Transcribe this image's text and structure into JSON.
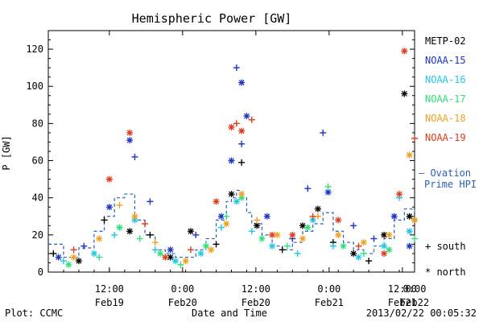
{
  "footer": {
    "left": "Plot: CCMC",
    "center": "Date and Time",
    "right": "2013/02/22 00:05:32"
  },
  "colors": {
    "METP-02": "#000000",
    "NOAA-15": "#1a33c8",
    "NOAA-16": "#1ec8e6",
    "NOAA-17": "#2ee07a",
    "NOAA-18": "#f0a020",
    "NOAA-19": "#e03a1a",
    "Ovation": "#2a5fbf"
  },
  "chart_data": {
    "type": "scatter",
    "title": "Hemispheric Power [GW]",
    "xlabel": "Date and Time",
    "ylabel": "P [GW]",
    "ylim": [
      0,
      130
    ],
    "xlim_hours": [
      0,
      60
    ],
    "yticks": [
      0,
      20,
      40,
      60,
      80,
      100,
      120
    ],
    "xticks": [
      {
        "hour": 12,
        "line1": "12:00",
        "line2": "Feb19"
      },
      {
        "hour": 24,
        "line1": "0:00",
        "line2": "Feb20"
      },
      {
        "hour": 36,
        "line1": "12:00",
        "line2": "Feb20"
      },
      {
        "hour": 48,
        "line1": "0:00",
        "line2": "Feb21"
      },
      {
        "hour": 60,
        "line1": "12:00",
        "line2": "Feb21"
      },
      {
        "hour": 72,
        "line1": "0:00",
        "line2": "Feb22"
      }
    ],
    "legend": {
      "satellites": [
        "METP-02",
        "NOAA-15",
        "NOAA-16",
        "NOAA-17",
        "NOAA-18",
        "NOAA-19"
      ],
      "model_line1": "— Ovation",
      "model_line2": "Prime HPI",
      "south_label": "+ south",
      "north_label": "* north"
    },
    "series": [
      {
        "name": "METP-02",
        "color": "#000000",
        "points": [
          [
            1,
            10,
            "+"
          ],
          [
            6,
            6,
            "*"
          ],
          [
            11,
            28,
            "+"
          ],
          [
            16,
            22,
            "*"
          ],
          [
            20,
            20,
            "+"
          ],
          [
            24,
            8,
            "*"
          ],
          [
            28,
            22,
            "*"
          ],
          [
            33,
            15,
            "+"
          ],
          [
            36,
            42,
            "*"
          ],
          [
            38,
            59,
            "+"
          ],
          [
            41,
            25,
            "*"
          ],
          [
            46,
            12,
            "+"
          ],
          [
            50,
            25,
            "*"
          ],
          [
            53,
            34,
            "*"
          ],
          [
            56,
            16,
            "+"
          ],
          [
            60,
            10,
            "*"
          ],
          [
            63,
            6,
            "+"
          ],
          [
            66,
            20,
            "*"
          ],
          [
            70,
            96,
            "*"
          ],
          [
            71,
            30,
            "*"
          ],
          [
            72,
            28,
            "+"
          ]
        ]
      },
      {
        "name": "NOAA-15",
        "color": "#1a33c8",
        "points": [
          [
            2,
            8,
            "*"
          ],
          [
            7,
            14,
            "+"
          ],
          [
            12,
            35,
            "*"
          ],
          [
            16,
            71,
            "*"
          ],
          [
            17,
            62,
            "+"
          ],
          [
            20,
            38,
            "+"
          ],
          [
            24,
            12,
            "*"
          ],
          [
            29,
            20,
            "+"
          ],
          [
            34,
            30,
            "*"
          ],
          [
            36,
            60,
            "*"
          ],
          [
            37,
            110,
            "+"
          ],
          [
            38,
            102,
            "*"
          ],
          [
            38,
            69,
            "+"
          ],
          [
            39,
            84,
            "*"
          ],
          [
            43,
            30,
            "*"
          ],
          [
            48,
            18,
            "+"
          ],
          [
            51,
            45,
            "+"
          ],
          [
            54,
            75,
            "+"
          ],
          [
            55,
            43,
            "*"
          ],
          [
            60,
            25,
            "+"
          ],
          [
            64,
            18,
            "+"
          ],
          [
            68,
            30,
            "*"
          ],
          [
            71,
            14,
            "*"
          ]
        ]
      },
      {
        "name": "NOAA-16",
        "color": "#1ec8e6",
        "points": [
          [
            3,
            6,
            "+"
          ],
          [
            9,
            10,
            "*"
          ],
          [
            13,
            20,
            "+"
          ],
          [
            17,
            28,
            "*"
          ],
          [
            21,
            12,
            "+"
          ],
          [
            25,
            6,
            "*"
          ],
          [
            30,
            10,
            "*"
          ],
          [
            34,
            24,
            "+"
          ],
          [
            37,
            38,
            "*"
          ],
          [
            40,
            22,
            "+"
          ],
          [
            44,
            14,
            "*"
          ],
          [
            49,
            10,
            "+"
          ],
          [
            52,
            28,
            "*"
          ],
          [
            56,
            14,
            "+"
          ],
          [
            61,
            8,
            "*"
          ],
          [
            66,
            14,
            "*"
          ],
          [
            69,
            40,
            "+"
          ],
          [
            71,
            22,
            "*"
          ]
        ]
      },
      {
        "name": "NOAA-17",
        "color": "#2ee07a",
        "points": [
          [
            4,
            4,
            "*"
          ],
          [
            10,
            8,
            "+"
          ],
          [
            14,
            24,
            "*"
          ],
          [
            18,
            18,
            "+"
          ],
          [
            22,
            10,
            "*"
          ],
          [
            26,
            4,
            "+"
          ],
          [
            31,
            14,
            "*"
          ],
          [
            35,
            30,
            "+"
          ],
          [
            38,
            40,
            "*"
          ],
          [
            42,
            18,
            "*"
          ],
          [
            47,
            14,
            "+"
          ],
          [
            51,
            24,
            "*"
          ],
          [
            55,
            46,
            "+"
          ],
          [
            58,
            14,
            "*"
          ],
          [
            62,
            10,
            "+"
          ],
          [
            67,
            12,
            "*"
          ],
          [
            72,
            18,
            "+"
          ]
        ]
      },
      {
        "name": "NOAA-18",
        "color": "#f0a020",
        "points": [
          [
            5,
            8,
            "*"
          ],
          [
            10,
            18,
            "*"
          ],
          [
            14,
            36,
            "+"
          ],
          [
            17,
            30,
            "*"
          ],
          [
            21,
            16,
            "+"
          ],
          [
            27,
            6,
            "*"
          ],
          [
            32,
            12,
            "*"
          ],
          [
            35,
            26,
            "*"
          ],
          [
            38,
            42,
            "*"
          ],
          [
            41,
            28,
            "+"
          ],
          [
            45,
            20,
            "*"
          ],
          [
            50,
            18,
            "*"
          ],
          [
            53,
            30,
            "+"
          ],
          [
            57,
            20,
            "*"
          ],
          [
            62,
            16,
            "*"
          ],
          [
            67,
            20,
            "*"
          ],
          [
            71,
            63,
            "*"
          ],
          [
            72,
            28,
            "*"
          ]
        ]
      },
      {
        "name": "NOAA-19",
        "color": "#e03a1a",
        "points": [
          [
            5,
            12,
            "+"
          ],
          [
            12,
            50,
            "*"
          ],
          [
            16,
            75,
            "*"
          ],
          [
            19,
            26,
            "+"
          ],
          [
            23,
            8,
            "*"
          ],
          [
            28,
            12,
            "+"
          ],
          [
            33,
            38,
            "*"
          ],
          [
            36,
            78,
            "*"
          ],
          [
            37,
            80,
            "+"
          ],
          [
            38,
            76,
            "*"
          ],
          [
            40,
            82,
            "+"
          ],
          [
            44,
            20,
            "*"
          ],
          [
            48,
            20,
            "*"
          ],
          [
            52,
            30,
            "+"
          ],
          [
            57,
            28,
            "*"
          ],
          [
            61,
            14,
            "+"
          ],
          [
            66,
            10,
            "*"
          ],
          [
            69,
            42,
            "*"
          ],
          [
            70,
            119,
            "*"
          ],
          [
            72,
            72,
            "+"
          ]
        ]
      }
    ],
    "ovation_hpi": {
      "name": "Ovation Prime HPI",
      "color": "#2a5fbf",
      "x": [
        0,
        3,
        6,
        9,
        11,
        13,
        15,
        17,
        19,
        21,
        23,
        25,
        27,
        29,
        31,
        33,
        35,
        36,
        37,
        38,
        39,
        40,
        42,
        44,
        46,
        48,
        50,
        52,
        54,
        56,
        58,
        60,
        62,
        64,
        66,
        68,
        70,
        72
      ],
      "y": [
        15,
        8,
        13,
        22,
        30,
        40,
        42,
        28,
        20,
        12,
        10,
        8,
        8,
        12,
        18,
        28,
        38,
        40,
        44,
        40,
        32,
        26,
        20,
        14,
        12,
        16,
        22,
        26,
        32,
        22,
        16,
        12,
        10,
        14,
        18,
        28,
        34,
        28
      ]
    }
  }
}
